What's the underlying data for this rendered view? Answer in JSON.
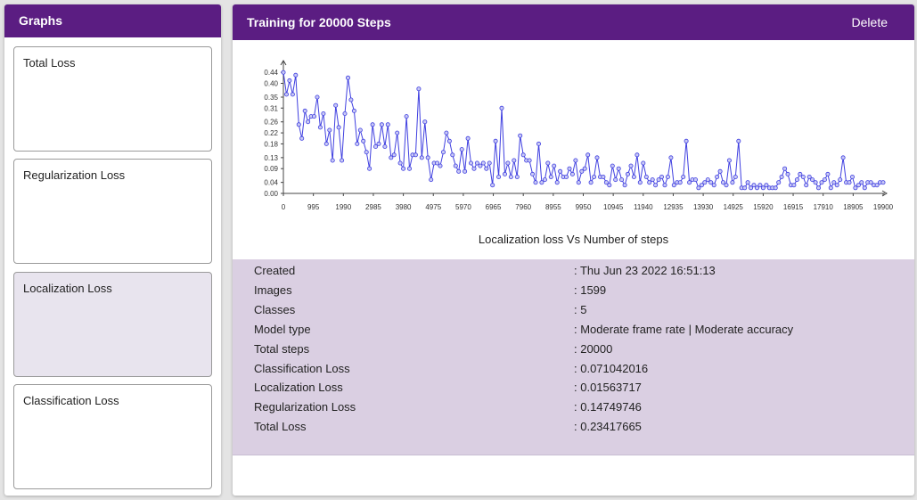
{
  "sidebar": {
    "title": "Graphs",
    "items": [
      {
        "label": "Total Loss",
        "active": false
      },
      {
        "label": "Regularization Loss",
        "active": false
      },
      {
        "label": "Localization Loss",
        "active": true
      },
      {
        "label": "Classification Loss",
        "active": false
      }
    ]
  },
  "main": {
    "title": "Training for 20000 Steps",
    "delete_label": "Delete",
    "details": [
      {
        "label": "Created",
        "value": ": Thu Jun 23 2022 16:51:13"
      },
      {
        "label": "Images",
        "value": ": 1599"
      },
      {
        "label": "Classes",
        "value": ": 5"
      },
      {
        "label": "Model type",
        "value": ": Moderate frame rate | Moderate accuracy"
      },
      {
        "label": "Total steps",
        "value": ": 20000"
      },
      {
        "label": "Classification Loss",
        "value": ": 0.071042016"
      },
      {
        "label": "Localization Loss",
        "value": ": 0.01563717"
      },
      {
        "label": "Regularization Loss",
        "value": ": 0.14749746"
      },
      {
        "label": "Total Loss",
        "value": ": 0.23417665"
      }
    ]
  },
  "colors": {
    "header": "#5b1d82",
    "line": "#3f3fe0",
    "details_bg": "#dacfe2",
    "active_card_bg": "#e8e4ee"
  },
  "chart_data": {
    "type": "line",
    "title": "Localization loss Vs Number of steps",
    "xlabel": "",
    "ylabel": "",
    "xlim": [
      0,
      19900
    ],
    "ylim": [
      0,
      0.46
    ],
    "x_tick_labels": [
      "0",
      "995",
      "1990",
      "2985",
      "3980",
      "4975",
      "5970",
      "6965",
      "7960",
      "8955",
      "9950",
      "10945",
      "11940",
      "12935",
      "13930",
      "14925",
      "15920",
      "16915",
      "17910",
      "18905",
      "19900"
    ],
    "y_tick_labels": [
      "0.00",
      "0.04",
      "0.09",
      "0.13",
      "0.18",
      "0.22",
      "0.26",
      "0.31",
      "0.35",
      "0.40",
      "0.44"
    ],
    "series": [
      {
        "values": [
          0.44,
          0.36,
          0.41,
          0.36,
          0.43,
          0.25,
          0.2,
          0.3,
          0.26,
          0.28,
          0.28,
          0.35,
          0.24,
          0.29,
          0.18,
          0.23,
          0.12,
          0.32,
          0.24,
          0.12,
          0.29,
          0.42,
          0.34,
          0.3,
          0.18,
          0.23,
          0.19,
          0.15,
          0.09,
          0.25,
          0.17,
          0.18,
          0.25,
          0.17,
          0.25,
          0.13,
          0.14,
          0.22,
          0.11,
          0.09,
          0.28,
          0.09,
          0.14,
          0.14,
          0.38,
          0.13,
          0.26,
          0.13,
          0.05,
          0.11,
          0.11,
          0.1,
          0.15,
          0.22,
          0.19,
          0.14,
          0.1,
          0.08,
          0.16,
          0.08,
          0.2,
          0.11,
          0.09,
          0.11,
          0.1,
          0.11,
          0.09,
          0.11,
          0.03,
          0.19,
          0.06,
          0.31,
          0.07,
          0.11,
          0.06,
          0.12,
          0.06,
          0.21,
          0.14,
          0.12,
          0.12,
          0.07,
          0.04,
          0.18,
          0.04,
          0.05,
          0.11,
          0.06,
          0.1,
          0.04,
          0.08,
          0.06,
          0.06,
          0.09,
          0.07,
          0.12,
          0.04,
          0.08,
          0.09,
          0.14,
          0.04,
          0.06,
          0.13,
          0.06,
          0.06,
          0.04,
          0.03,
          0.1,
          0.05,
          0.09,
          0.05,
          0.03,
          0.07,
          0.1,
          0.06,
          0.14,
          0.04,
          0.11,
          0.06,
          0.04,
          0.05,
          0.03,
          0.05,
          0.06,
          0.03,
          0.06,
          0.13,
          0.03,
          0.04,
          0.04,
          0.06,
          0.19,
          0.04,
          0.05,
          0.05,
          0.02,
          0.03,
          0.04,
          0.05,
          0.04,
          0.03,
          0.06,
          0.08,
          0.04,
          0.03,
          0.12,
          0.04,
          0.06,
          0.19,
          0.02,
          0.02,
          0.04,
          0.02,
          0.03,
          0.02,
          0.03,
          0.02,
          0.03,
          0.02,
          0.02,
          0.02,
          0.04,
          0.06,
          0.09,
          0.07,
          0.03,
          0.03,
          0.05,
          0.07,
          0.06,
          0.03,
          0.06,
          0.05,
          0.04,
          0.02,
          0.04,
          0.05,
          0.07,
          0.02,
          0.04,
          0.03,
          0.05,
          0.13,
          0.04,
          0.04,
          0.06,
          0.02,
          0.03,
          0.04,
          0.02,
          0.04,
          0.04,
          0.03,
          0.03,
          0.04,
          0.04
        ]
      }
    ]
  }
}
